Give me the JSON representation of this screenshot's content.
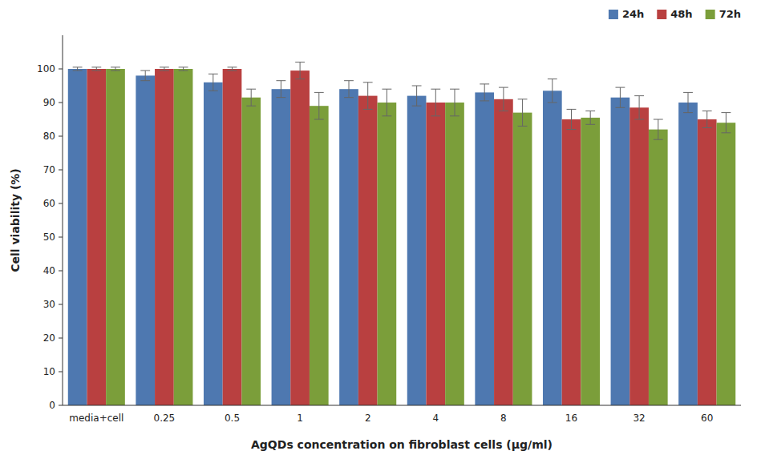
{
  "chart_data": {
    "type": "bar",
    "xlabel": "AgQDs concentration on fibroblast cells (μg/ml)",
    "ylabel": "Cell viability (%)",
    "categories": [
      "media+cell",
      "0.25",
      "0.5",
      "1",
      "2",
      "4",
      "8",
      "16",
      "32",
      "60"
    ],
    "series": [
      {
        "name": "24h",
        "color": "#4E78B0",
        "values": [
          100,
          98,
          96,
          94,
          94,
          92,
          93,
          93.5,
          91.5,
          90
        ],
        "errors": [
          0.5,
          1.5,
          2.5,
          2.5,
          2.5,
          3,
          2.5,
          3.5,
          3,
          3
        ]
      },
      {
        "name": "48h",
        "color": "#B94040",
        "values": [
          100,
          100,
          100,
          99.5,
          92,
          90,
          91,
          85,
          88.5,
          85
        ],
        "errors": [
          0.5,
          0.5,
          0.5,
          2.5,
          4,
          4,
          3.5,
          3,
          3.5,
          2.5
        ]
      },
      {
        "name": "72h",
        "color": "#7B9E3A",
        "values": [
          100,
          100,
          91.5,
          89,
          90,
          90,
          87,
          85.5,
          82,
          84
        ],
        "errors": [
          0.5,
          0.5,
          2.5,
          4,
          4,
          4,
          4,
          2,
          3,
          3
        ]
      }
    ],
    "ylim": [
      0,
      110
    ],
    "yticks": [
      0,
      10,
      20,
      30,
      40,
      50,
      60,
      70,
      80,
      90,
      100
    ],
    "grid": false,
    "legend": "upper right"
  }
}
